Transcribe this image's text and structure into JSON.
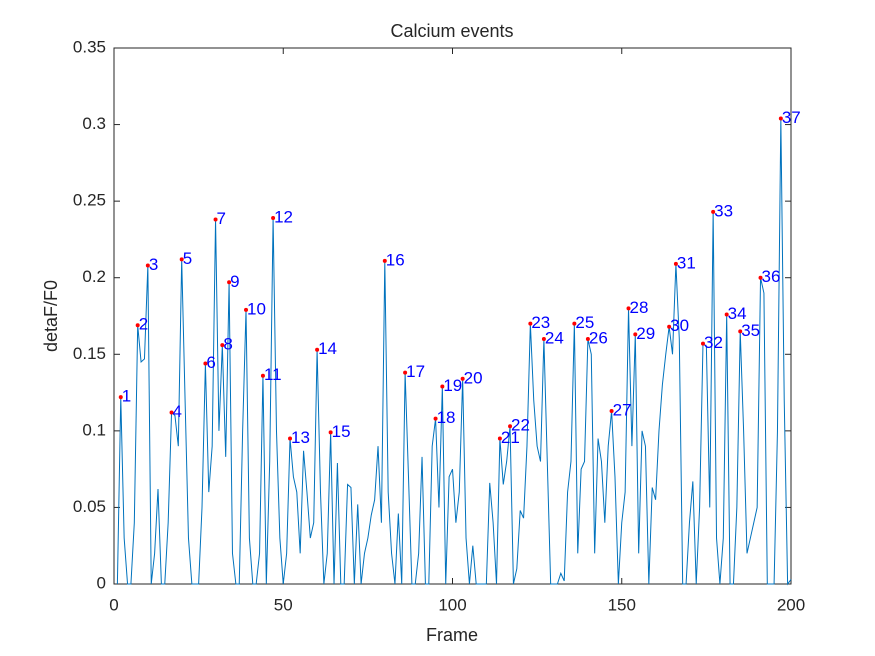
{
  "chart_data": {
    "type": "line",
    "title": "Calcium events",
    "xlabel": "Frame",
    "ylabel": "detaF/F0",
    "xlim": [
      0,
      200
    ],
    "ylim": [
      0,
      0.35
    ],
    "xticks": [
      0,
      50,
      100,
      150,
      200
    ],
    "yticks": [
      0,
      0.05,
      0.1,
      0.15,
      0.2,
      0.25,
      0.3,
      0.35
    ],
    "series": [
      {
        "color": "#0072bd",
        "style": "line",
        "x": [
          1,
          2,
          3,
          4,
          5,
          6,
          7,
          8,
          9,
          10,
          11,
          12,
          13,
          14,
          15,
          16,
          17,
          18,
          19,
          20,
          21,
          22,
          23,
          24,
          25,
          26,
          27,
          28,
          29,
          30,
          31,
          32,
          33,
          34,
          35,
          36,
          37,
          38,
          39,
          40,
          41,
          42,
          43,
          44,
          45,
          46,
          47,
          48,
          49,
          50,
          51,
          52,
          53,
          54,
          55,
          56,
          57,
          58,
          59,
          60,
          61,
          62,
          63,
          64,
          65,
          66,
          67,
          68,
          69,
          70,
          71,
          72,
          73,
          74,
          75,
          76,
          77,
          78,
          79,
          80,
          81,
          82,
          83,
          84,
          85,
          86,
          87,
          88,
          89,
          90,
          91,
          92,
          93,
          94,
          95,
          96,
          97,
          98,
          99,
          100,
          101,
          102,
          103,
          104,
          105,
          106,
          107,
          108,
          109,
          110,
          111,
          112,
          113,
          114,
          115,
          116,
          117,
          118,
          119,
          120,
          121,
          122,
          123,
          124,
          125,
          126,
          127,
          128,
          129,
          130,
          131,
          132,
          133,
          134,
          135,
          136,
          137,
          138,
          139,
          140,
          141,
          142,
          143,
          144,
          145,
          146,
          147,
          148,
          149,
          150,
          151,
          152,
          153,
          154,
          155,
          156,
          157,
          158,
          159,
          160,
          161,
          162,
          163,
          164,
          165,
          166,
          167,
          168,
          169,
          170,
          171,
          172,
          173,
          174,
          175,
          176,
          177,
          178,
          179,
          180,
          181,
          182,
          183,
          184,
          185,
          186,
          187,
          188,
          189,
          190,
          191,
          192,
          193,
          194,
          195,
          196,
          197,
          198,
          199,
          200
        ],
        "values": [
          0,
          0.122,
          0.03,
          0,
          0,
          0.04,
          0.169,
          0.145,
          0.147,
          0.208,
          0,
          0.02,
          0.062,
          0,
          0,
          0.04,
          0.112,
          0.11,
          0.09,
          0.212,
          0.12,
          0.03,
          0,
          0,
          0,
          0.05,
          0.144,
          0.06,
          0.09,
          0.238,
          0.1,
          0.156,
          0.083,
          0.197,
          0.02,
          0,
          0,
          0.1,
          0.179,
          0.03,
          0,
          0,
          0.02,
          0.136,
          0,
          0.08,
          0.239,
          0.1,
          0.03,
          0,
          0.02,
          0.095,
          0.07,
          0.06,
          0.02,
          0.087,
          0.06,
          0.03,
          0.04,
          0.153,
          0.06,
          0,
          0.02,
          0.099,
          0,
          0.079,
          0,
          0,
          0.065,
          0.063,
          0,
          0.052,
          0,
          0.02,
          0.03,
          0.045,
          0.055,
          0.09,
          0.04,
          0.211,
          0.06,
          0.02,
          0,
          0.046,
          0,
          0.138,
          0.07,
          0,
          0,
          0.02,
          0.083,
          0,
          0,
          0.09,
          0.108,
          0.05,
          0.129,
          0,
          0.07,
          0.075,
          0.04,
          0.06,
          0.134,
          0.03,
          0,
          0.025,
          0,
          0,
          0,
          0,
          0.066,
          0.04,
          0,
          0.095,
          0.065,
          0.08,
          0.103,
          0,
          0.01,
          0.048,
          0.043,
          0.09,
          0.17,
          0.12,
          0.09,
          0.08,
          0.16,
          0.08,
          0,
          0,
          0,
          0.007,
          0.002,
          0.06,
          0.08,
          0.17,
          0.02,
          0.075,
          0.08,
          0.16,
          0.15,
          0.02,
          0.095,
          0.08,
          0.04,
          0.09,
          0.113,
          0.07,
          0,
          0.04,
          0.06,
          0.18,
          0.09,
          0.163,
          0.02,
          0.1,
          0.09,
          0,
          0.063,
          0.055,
          0.1,
          0.13,
          0.15,
          0.168,
          0.15,
          0.209,
          0.16,
          0,
          0,
          0.04,
          0.067,
          0,
          0.05,
          0.157,
          0.155,
          0.05,
          0.243,
          0.03,
          0,
          0.03,
          0.176,
          0,
          0,
          0.05,
          0.165,
          0.1,
          0.02,
          0.03,
          0.04,
          0.05,
          0.2,
          0.19,
          0,
          0,
          0,
          0.1,
          0.304,
          0.12,
          0,
          0.003
        ]
      },
      {
        "color": "#ff0000",
        "label_color": "#0000ff",
        "style": "markers",
        "x": [
          2,
          7,
          10,
          17,
          20,
          27,
          30,
          32,
          34,
          39,
          44,
          47,
          52,
          60,
          64,
          80,
          86,
          95,
          97,
          103,
          114,
          117,
          123,
          127,
          136,
          140,
          147,
          152,
          154,
          164,
          166,
          174,
          177,
          181,
          185,
          191,
          197
        ],
        "values": [
          0.122,
          0.169,
          0.208,
          0.112,
          0.212,
          0.144,
          0.238,
          0.156,
          0.197,
          0.179,
          0.136,
          0.239,
          0.095,
          0.153,
          0.099,
          0.211,
          0.138,
          0.108,
          0.129,
          0.134,
          0.095,
          0.103,
          0.17,
          0.16,
          0.17,
          0.16,
          0.113,
          0.18,
          0.163,
          0.168,
          0.209,
          0.157,
          0.243,
          0.176,
          0.165,
          0.2,
          0.304
        ],
        "labels": [
          "1",
          "2",
          "3",
          "4",
          "5",
          "6",
          "7",
          "8",
          "9",
          "10",
          "11",
          "12",
          "13",
          "14",
          "15",
          "16",
          "17",
          "18",
          "19",
          "20",
          "21",
          "22",
          "23",
          "24",
          "25",
          "26",
          "27",
          "28",
          "29",
          "30",
          "31",
          "32",
          "33",
          "34",
          "35",
          "36",
          "37"
        ]
      }
    ]
  }
}
